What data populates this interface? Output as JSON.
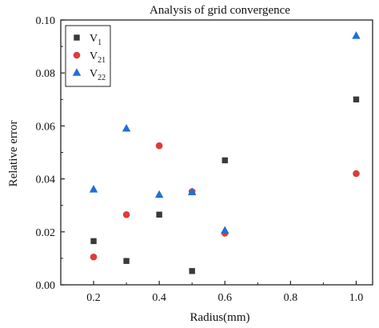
{
  "chart_data": {
    "type": "scatter",
    "title": "Analysis of grid convergence",
    "xlabel": "Radius(mm)",
    "ylabel": "Relative error",
    "xlim": [
      0.1,
      1.05
    ],
    "ylim": [
      0,
      0.1
    ],
    "xticks": [
      0.2,
      0.4,
      0.6,
      0.8,
      1.0
    ],
    "xtick_labels": [
      "0.2",
      "0.4",
      "0.6",
      "0.8",
      "1.0"
    ],
    "yticks": [
      0,
      0.02,
      0.04,
      0.06,
      0.08,
      0.1
    ],
    "ytick_labels": [
      "0.00",
      "0.02",
      "0.04",
      "0.06",
      "0.08",
      "0.10"
    ],
    "grid": false,
    "legend_position": "top-left",
    "series": [
      {
        "name": "V1",
        "label_base": "V",
        "label_sub": "1",
        "marker": "square",
        "color": "#3a3a3a",
        "x": [
          0.2,
          0.3,
          0.4,
          0.5,
          0.6,
          1.0
        ],
        "y": [
          0.0165,
          0.009,
          0.0265,
          0.0052,
          0.047,
          0.07
        ]
      },
      {
        "name": "V21",
        "label_base": "V",
        "label_sub": "21",
        "marker": "circle",
        "color": "#e03a3a",
        "x": [
          0.2,
          0.3,
          0.4,
          0.5,
          0.6,
          1.0
        ],
        "y": [
          0.0105,
          0.0265,
          0.0525,
          0.0352,
          0.0195,
          0.042
        ]
      },
      {
        "name": "V22",
        "label_base": "V",
        "label_sub": "22",
        "marker": "triangle",
        "color": "#1f6fd6",
        "x": [
          0.2,
          0.3,
          0.4,
          0.5,
          0.6,
          1.0
        ],
        "y": [
          0.036,
          0.059,
          0.034,
          0.035,
          0.0205,
          0.094
        ]
      }
    ]
  }
}
